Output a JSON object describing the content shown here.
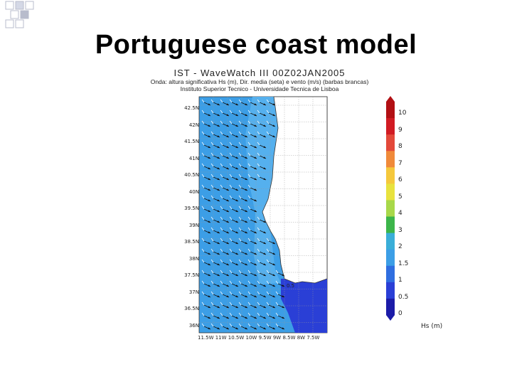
{
  "slide": {
    "title": "Portuguese coast model"
  },
  "figure": {
    "header_line1": "IST - WaveWatch III 00Z02JAN2005",
    "header_line2": "Onda: altura significativa Hs (m), Dir. media (seta) e vento (m/s) (barbas brancas)",
    "header_line3": "Instituto Superior Tecnico - Universidade Tecnica de Lisboa",
    "lat_labels": [
      "42.5N",
      "42N",
      "41.5N",
      "41N",
      "40.5N",
      "40N",
      "39.5N",
      "39N",
      "38.5N",
      "38N",
      "37.5N",
      "37N",
      "36.5N",
      "36N"
    ],
    "lon_labels": "11.5W 11W 10.5W 10W 9.5W 9W 8.5W 8W 7.5W",
    "contour_label": "0.5",
    "colors": {
      "sea_main": "#3c9ee6",
      "sea_inner": "#55b0ee",
      "sea_dark": "#2a3fd6",
      "land": "#ffffff"
    }
  },
  "colorbar": {
    "labels": [
      "10",
      "9",
      "8",
      "7",
      "6",
      "5",
      "4",
      "3",
      "2",
      "1.5",
      "1",
      "0.5",
      "0"
    ],
    "unit": "Hs (m)",
    "colors": [
      "#b21014",
      "#d11b23",
      "#e3493a",
      "#f08a3a",
      "#f5c83c",
      "#e8e23e",
      "#a8d84a",
      "#3cb54a",
      "#3aaed8",
      "#3c9ee6",
      "#2f6ee0",
      "#2a3fd6",
      "#1c1ca8"
    ]
  }
}
